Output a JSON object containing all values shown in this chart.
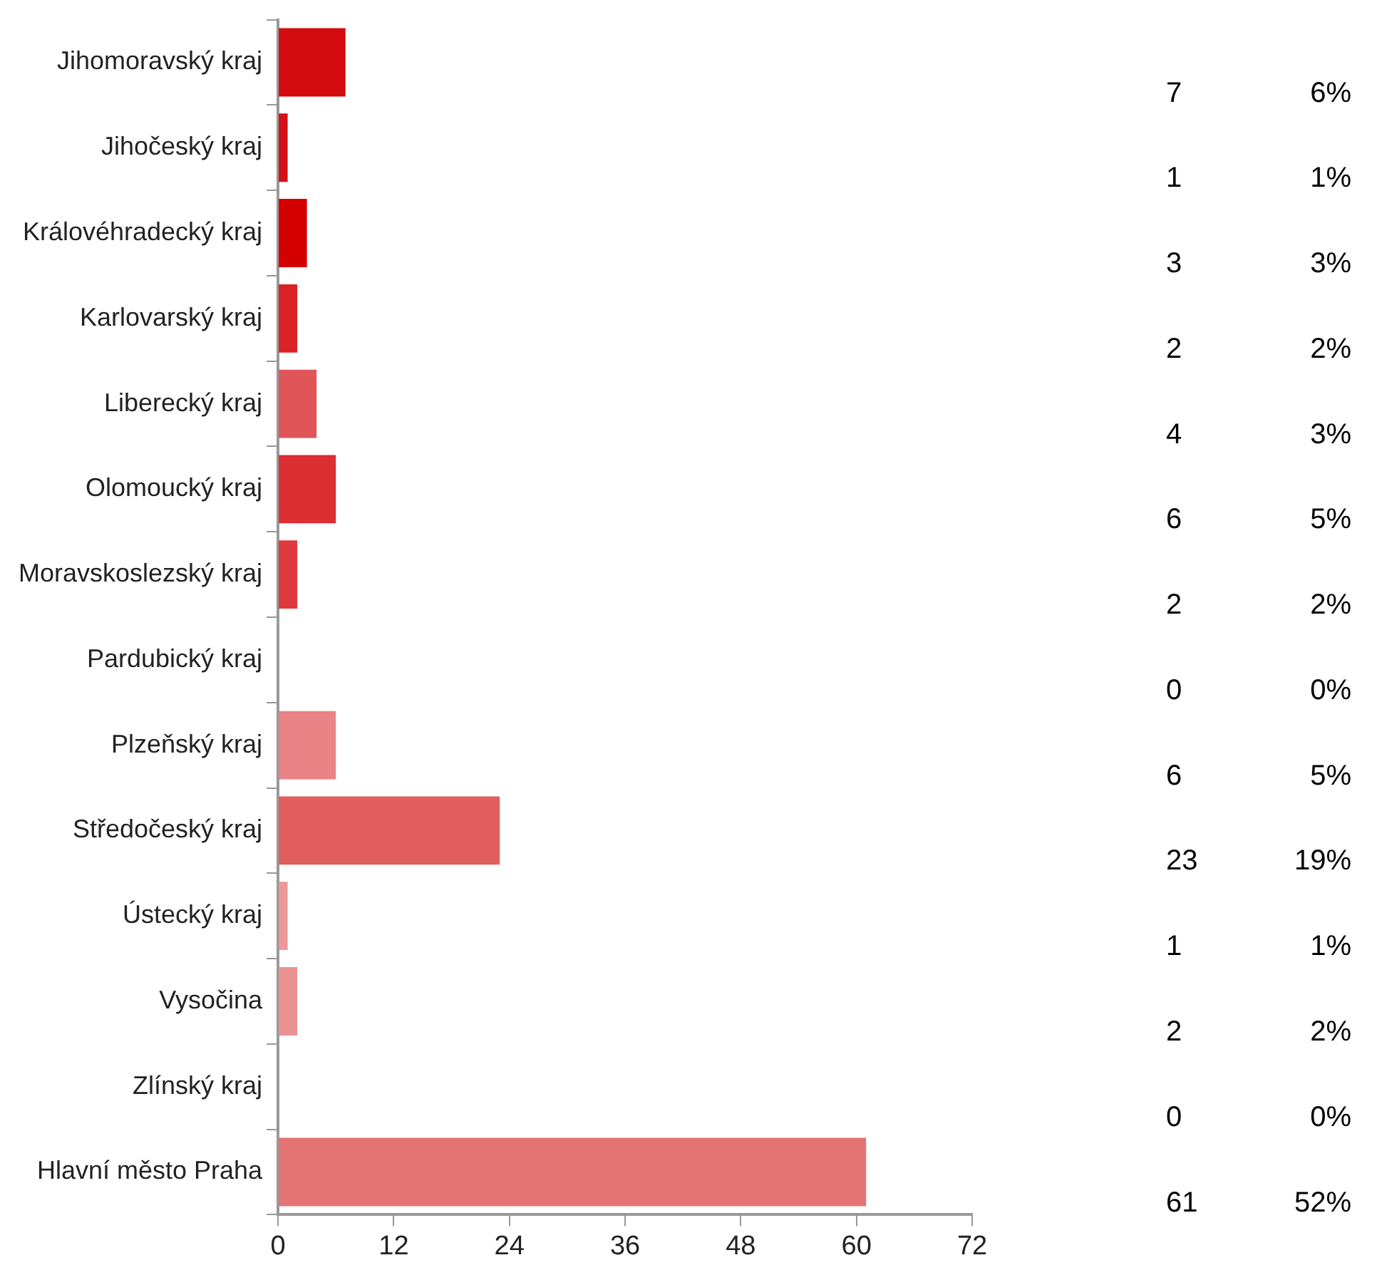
{
  "chart_data": {
    "type": "bar",
    "orientation": "horizontal",
    "categories": [
      "Jihomoravský kraj",
      "Jihočeský kraj",
      "Královéhradecký kraj",
      "Karlovarský kraj",
      "Liberecký kraj",
      "Olomoucký kraj",
      "Moravskoslezský kraj",
      "Pardubický kraj",
      "Plzeňský kraj",
      "Středočeský kraj",
      "Ústecký kraj",
      "Vysočina",
      "Zlínský kraj",
      "Hlavní město Praha"
    ],
    "values": [
      7,
      1,
      3,
      2,
      4,
      6,
      2,
      0,
      6,
      23,
      1,
      2,
      0,
      61
    ],
    "colors": [
      "#d40c10",
      "#d51117",
      "#d40000",
      "#da2226",
      "#e05558",
      "#dc2f32",
      "#de3a3e",
      "#e0787c",
      "#e98386",
      "#e15e5f",
      "#ec9798",
      "#eb9192",
      "#e88c8e",
      "#e47474"
    ],
    "annotations": [
      "7",
      "6%",
      "1",
      "1%",
      "3",
      "3%",
      "2",
      "2%",
      "4",
      "3%",
      "6",
      "5%",
      "2",
      "2%",
      "0",
      "0%",
      "6",
      "5%",
      "23",
      "19%",
      "1",
      "1%",
      "2",
      "2%",
      "0",
      "0%",
      "61",
      "52%"
    ],
    "xlim": [
      0,
      72
    ],
    "xticks": [
      0,
      12,
      24,
      36,
      48,
      60,
      72
    ],
    "grid": false,
    "legend": false
  }
}
